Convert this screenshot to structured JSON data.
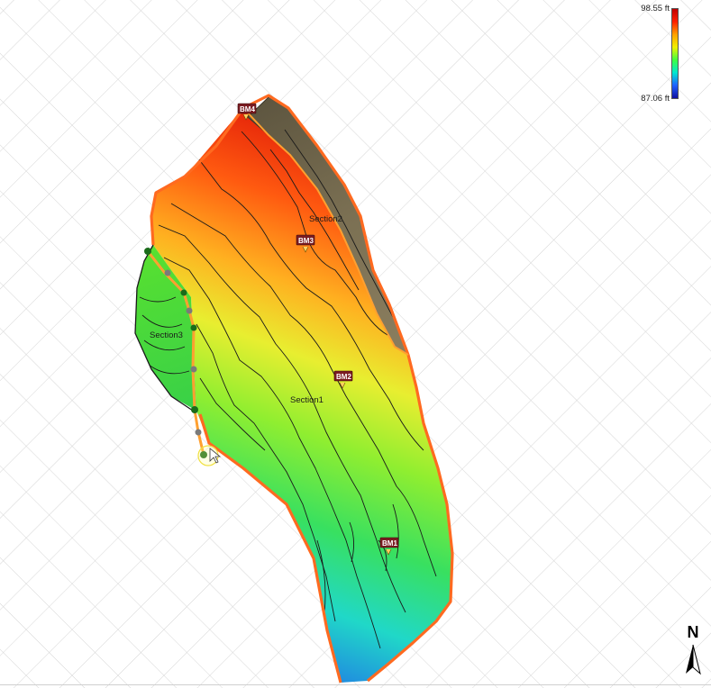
{
  "legend": {
    "max_label": "98.55 ft",
    "min_label": "87.06 ft",
    "gradient_colors": [
      "#c00000",
      "#ff2000",
      "#ffa000",
      "#f0f000",
      "#40ff40",
      "#00e8d0",
      "#2060ff",
      "#1010a0"
    ]
  },
  "sections": [
    {
      "id": "section1",
      "label": "Section1"
    },
    {
      "id": "section2",
      "label": "Section2"
    },
    {
      "id": "section3",
      "label": "Section3"
    }
  ],
  "benchmarks": [
    {
      "id": "bm1",
      "label": "BM1"
    },
    {
      "id": "bm2",
      "label": "BM2"
    },
    {
      "id": "bm3",
      "label": "BM3"
    },
    {
      "id": "bm4",
      "label": "BM4"
    }
  ],
  "compass": {
    "label": "N",
    "icon": "north-arrow-icon"
  },
  "colors": {
    "boundary": "#ff6a20",
    "grid": "#d8d8d8",
    "contour": "#1a1a1a",
    "edit_line": "#ffa030",
    "vertex_green": "#1a6b1a",
    "vertex_gray": "#7a7a7a",
    "berm": "#6e6548"
  }
}
